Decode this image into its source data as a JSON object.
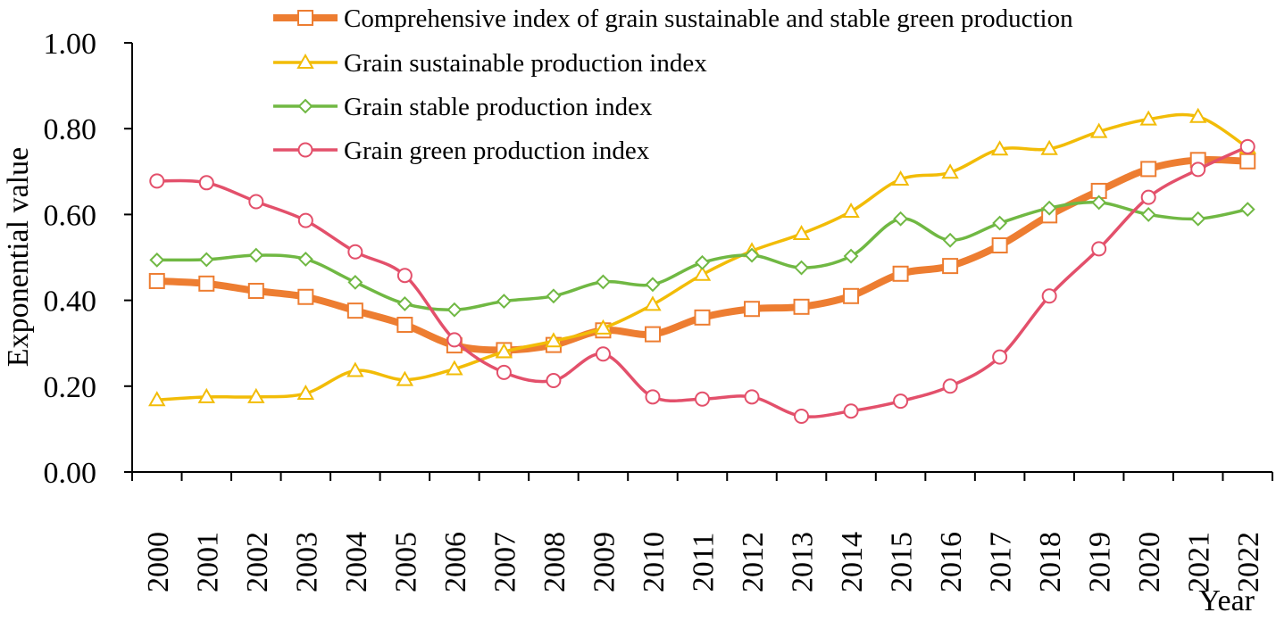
{
  "chart_data": {
    "type": "line",
    "title": "",
    "xlabel": "Year",
    "ylabel": "Exponential value",
    "ylim": [
      0,
      1
    ],
    "yticks": [
      0,
      0.2,
      0.4,
      0.6,
      0.8,
      1.0
    ],
    "ytick_labels": [
      "0.00",
      "0.20",
      "0.40",
      "0.60",
      "0.80",
      "1.00"
    ],
    "categories": [
      "2000",
      "2001",
      "2002",
      "2003",
      "2004",
      "2005",
      "2006",
      "2007",
      "2008",
      "2009",
      "2010",
      "2011",
      "2012",
      "2013",
      "2014",
      "2015",
      "2016",
      "2017",
      "2018",
      "2019",
      "2020",
      "2021",
      "2022"
    ],
    "grid": false,
    "legend_position": "top",
    "series": [
      {
        "name": "Comprehensive index of grain sustainable and stable green production",
        "color": "#ED7D31",
        "marker": "square",
        "width": "thick",
        "values": [
          0.445,
          0.439,
          0.422,
          0.408,
          0.376,
          0.343,
          0.295,
          0.284,
          0.296,
          0.33,
          0.321,
          0.36,
          0.38,
          0.385,
          0.41,
          0.462,
          0.48,
          0.528,
          0.598,
          0.655,
          0.706,
          0.727,
          0.724
        ]
      },
      {
        "name": "Grain sustainable production index",
        "color": "#F2BC07",
        "marker": "triangle",
        "width": "normal",
        "values": [
          0.168,
          0.175,
          0.175,
          0.183,
          0.236,
          0.215,
          0.24,
          0.28,
          0.305,
          0.335,
          0.39,
          0.46,
          0.515,
          0.555,
          0.607,
          0.682,
          0.698,
          0.752,
          0.753,
          0.793,
          0.822,
          0.828,
          0.756
        ]
      },
      {
        "name": "Grain stable production index",
        "color": "#70B843",
        "marker": "diamond",
        "width": "normal",
        "values": [
          0.494,
          0.495,
          0.505,
          0.496,
          0.442,
          0.392,
          0.378,
          0.398,
          0.41,
          0.443,
          0.437,
          0.488,
          0.505,
          0.476,
          0.503,
          0.59,
          0.54,
          0.58,
          0.615,
          0.628,
          0.6,
          0.59,
          0.612
        ]
      },
      {
        "name": "Grain green production index",
        "color": "#E3506B",
        "marker": "circle",
        "width": "normal",
        "values": [
          0.678,
          0.674,
          0.63,
          0.586,
          0.513,
          0.458,
          0.308,
          0.232,
          0.213,
          0.275,
          0.175,
          0.17,
          0.175,
          0.13,
          0.142,
          0.165,
          0.2,
          0.268,
          0.41,
          0.52,
          0.64,
          0.705,
          0.758
        ]
      }
    ]
  }
}
